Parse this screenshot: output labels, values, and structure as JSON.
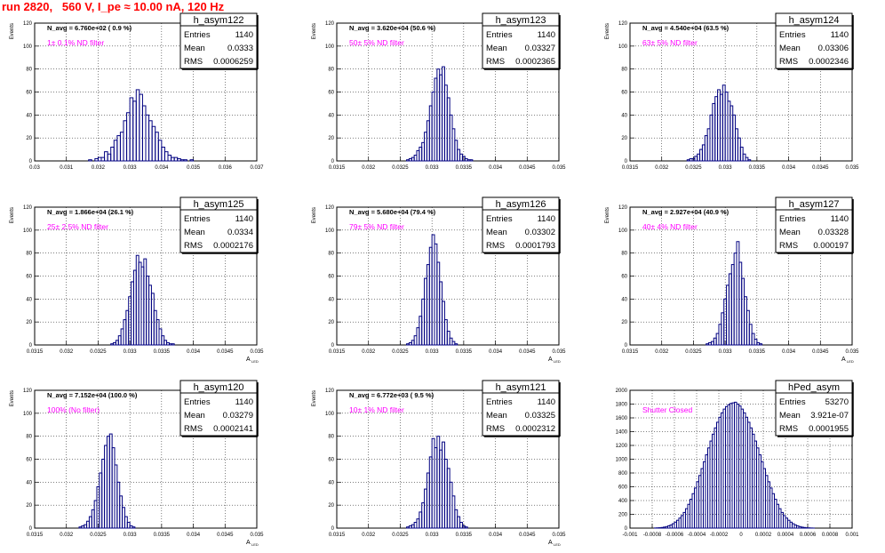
{
  "title": "run 2820,   560 V, I_pe ≈ 10.00 nA, 120 Hz",
  "colors": {
    "hist": "#000080",
    "note": "#ff00ff",
    "title": "#ff0000",
    "grid": "#c0c0c0"
  },
  "chart_data": [
    {
      "type": "bar",
      "name": "h_asym122",
      "stats": {
        "entries_label": "Entries",
        "entries": "1140",
        "mean_label": "Mean",
        "mean": "0.0333",
        "rms_label": "RMS",
        "rms": "0.0006259"
      },
      "navg_label": "N_avg = 6.760e+02 ( 0.9 %)",
      "note": "1± 0.1% ND filter",
      "ylabel": "Events",
      "xlabel": "",
      "xlim": [
        0.03,
        0.037
      ],
      "ylim": [
        0,
        120
      ],
      "xticks": [
        "0.03",
        "0.031",
        "0.032",
        "0.033",
        "0.034",
        "0.035",
        "0.036",
        "0.037"
      ],
      "yticks": [
        "0",
        "20",
        "40",
        "60",
        "80",
        "100",
        "120"
      ],
      "bin_start": 0.0317,
      "bin_width": 0.0001,
      "values": [
        1,
        0,
        2,
        3,
        3,
        8,
        6,
        12,
        18,
        22,
        25,
        35,
        42,
        55,
        52,
        62,
        58,
        48,
        40,
        35,
        30,
        25,
        18,
        12,
        8,
        5,
        3,
        3,
        2,
        1,
        1,
        0,
        1
      ]
    },
    {
      "type": "bar",
      "name": "h_asym123",
      "stats": {
        "entries_label": "Entries",
        "entries": "1140",
        "mean_label": "Mean",
        "mean": "0.03327",
        "rms_label": "RMS",
        "rms": "0.0002365"
      },
      "navg_label": "N_avg = 3.620e+04 (50.6 %)",
      "note": "50± 5% ND filter",
      "ylabel": "Events",
      "xlabel": "",
      "xlim": [
        0.0315,
        0.035
      ],
      "ylim": [
        0,
        120
      ],
      "xticks": [
        "0.0315",
        "0.032",
        "0.0325",
        "0.033",
        "0.0335",
        "0.034",
        "0.0345",
        "0.035"
      ],
      "yticks": [
        "0",
        "20",
        "40",
        "60",
        "80",
        "100",
        "120"
      ],
      "bin_start": 0.0326,
      "bin_width": 4e-05,
      "values": [
        1,
        2,
        3,
        5,
        9,
        12,
        16,
        25,
        35,
        48,
        60,
        72,
        80,
        75,
        82,
        66,
        55,
        40,
        28,
        18,
        10,
        6,
        4,
        2,
        1,
        1
      ]
    },
    {
      "type": "bar",
      "name": "h_asym124",
      "stats": {
        "entries_label": "Entries",
        "entries": "1140",
        "mean_label": "Mean",
        "mean": "0.03306",
        "rms_label": "RMS",
        "rms": "0.0002346"
      },
      "navg_label": "N_avg = 4.540e+04 (63.5 %)",
      "note": "63± 5% ND filter",
      "ylabel": "Events",
      "xlabel": "",
      "xlim": [
        0.0315,
        0.035
      ],
      "ylim": [
        0,
        120
      ],
      "xticks": [
        "0.0315",
        "0.032",
        "0.0325",
        "0.033",
        "0.0335",
        "0.034",
        "0.0345",
        "0.035"
      ],
      "yticks": [
        "0",
        "20",
        "40",
        "60",
        "80",
        "100",
        "120"
      ],
      "bin_start": 0.0324,
      "bin_width": 4e-05,
      "values": [
        1,
        2,
        2,
        4,
        6,
        10,
        14,
        22,
        28,
        40,
        50,
        56,
        62,
        58,
        66,
        60,
        52,
        48,
        40,
        28,
        20,
        12,
        6,
        3,
        1
      ]
    },
    {
      "type": "bar",
      "name": "h_asym125",
      "stats": {
        "entries_label": "Entries",
        "entries": "1140",
        "mean_label": "Mean",
        "mean": "0.0334",
        "rms_label": "RMS",
        "rms": "0.0002176"
      },
      "navg_label": "N_avg = 1.866e+04 (26.1 %)",
      "note": "25± 2.5% ND filter",
      "ylabel": "Events",
      "xlabel": "A",
      "xlabel_sub": "LED",
      "xlim": [
        0.0315,
        0.035
      ],
      "ylim": [
        0,
        120
      ],
      "xticks": [
        "0.0315",
        "0.032",
        "0.0325",
        "0.033",
        "0.0335",
        "0.034",
        "0.0345",
        "0.035"
      ],
      "yticks": [
        "0",
        "20",
        "40",
        "60",
        "80",
        "100",
        "120"
      ],
      "bin_start": 0.0327,
      "bin_width": 4e-05,
      "values": [
        1,
        2,
        4,
        8,
        14,
        22,
        30,
        42,
        55,
        65,
        78,
        72,
        68,
        75,
        60,
        52,
        45,
        30,
        22,
        14,
        8,
        4,
        2,
        1,
        1
      ]
    },
    {
      "type": "bar",
      "name": "h_asym126",
      "stats": {
        "entries_label": "Entries",
        "entries": "1140",
        "mean_label": "Mean",
        "mean": "0.03302",
        "rms_label": "RMS",
        "rms": "0.0001793"
      },
      "navg_label": "N_avg = 5.680e+04 (79.4 %)",
      "note": "79± 5% ND filter",
      "ylabel": "Events",
      "xlabel": "A",
      "xlabel_sub": "LED",
      "xlim": [
        0.0315,
        0.035
      ],
      "ylim": [
        0,
        120
      ],
      "xticks": [
        "0.0315",
        "0.032",
        "0.0325",
        "0.033",
        "0.0335",
        "0.034",
        "0.0345",
        "0.035"
      ],
      "yticks": [
        "0",
        "20",
        "40",
        "60",
        "80",
        "100",
        "120"
      ],
      "bin_start": 0.0326,
      "bin_width": 4e-05,
      "values": [
        1,
        2,
        4,
        8,
        15,
        25,
        40,
        58,
        70,
        85,
        96,
        88,
        72,
        55,
        38,
        22,
        12,
        6,
        3,
        1
      ]
    },
    {
      "type": "bar",
      "name": "h_asym127",
      "stats": {
        "entries_label": "Entries",
        "entries": "1140",
        "mean_label": "Mean",
        "mean": "0.03328",
        "rms_label": "RMS",
        "rms": "0.000197"
      },
      "navg_label": "N_avg = 2.927e+04 (40.9 %)",
      "note": "40± 4% ND filter",
      "ylabel": "Events",
      "xlabel": "A",
      "xlabel_sub": "LED",
      "xlim": [
        0.0315,
        0.035
      ],
      "ylim": [
        0,
        120
      ],
      "xticks": [
        "0.0315",
        "0.032",
        "0.0325",
        "0.033",
        "0.0335",
        "0.034",
        "0.0345",
        "0.035"
      ],
      "yticks": [
        "0",
        "20",
        "40",
        "60",
        "80",
        "100",
        "120"
      ],
      "bin_start": 0.0327,
      "bin_width": 4e-05,
      "values": [
        1,
        2,
        3,
        6,
        10,
        18,
        28,
        40,
        52,
        62,
        70,
        80,
        90,
        72,
        58,
        42,
        30,
        18,
        10,
        5,
        2,
        1
      ]
    },
    {
      "type": "bar",
      "name": "h_asym120",
      "stats": {
        "entries_label": "Entries",
        "entries": "1140",
        "mean_label": "Mean",
        "mean": "0.03279",
        "rms_label": "RMS",
        "rms": "0.0002141"
      },
      "navg_label": "N_avg = 7.152e+04 (100.0 %)",
      "note": "100% (No filter)",
      "ylabel": "Events",
      "xlabel": "A",
      "xlabel_sub": "LED",
      "xlim": [
        0.0315,
        0.035
      ],
      "ylim": [
        0,
        120
      ],
      "xticks": [
        "0.0315",
        "0.032",
        "0.0325",
        "0.033",
        "0.0335",
        "0.034",
        "0.0345",
        "0.035"
      ],
      "yticks": [
        "0",
        "20",
        "40",
        "60",
        "80",
        "100",
        "120"
      ],
      "bin_start": 0.0322,
      "bin_width": 4e-05,
      "values": [
        1,
        2,
        3,
        6,
        10,
        16,
        24,
        36,
        48,
        60,
        72,
        80,
        82,
        70,
        55,
        40,
        28,
        18,
        10,
        5,
        2,
        1
      ]
    },
    {
      "type": "bar",
      "name": "h_asym121",
      "stats": {
        "entries_label": "Entries",
        "entries": "1140",
        "mean_label": "Mean",
        "mean": "0.03325",
        "rms_label": "RMS",
        "rms": "0.0002312"
      },
      "navg_label": "N_avg = 6.772e+03 ( 9.5 %)",
      "note": "10± 1% ND filter",
      "ylabel": "Events",
      "xlabel": "A",
      "xlabel_sub": "LED",
      "xlim": [
        0.0315,
        0.035
      ],
      "ylim": [
        0,
        120
      ],
      "xticks": [
        "0.0315",
        "0.032",
        "0.0325",
        "0.033",
        "0.0335",
        "0.034",
        "0.0345",
        "0.035"
      ],
      "yticks": [
        "0",
        "20",
        "40",
        "60",
        "80",
        "100",
        "120"
      ],
      "bin_start": 0.0326,
      "bin_width": 4e-05,
      "values": [
        1,
        2,
        3,
        5,
        8,
        14,
        22,
        34,
        48,
        62,
        78,
        70,
        80,
        68,
        75,
        60,
        52,
        40,
        28,
        16,
        10,
        5,
        2,
        1
      ]
    },
    {
      "type": "bar",
      "name": "hPed_asym",
      "stats": {
        "entries_label": "Entries",
        "entries": "53270",
        "mean_label": "Mean",
        "mean": "3.921e-07",
        "rms_label": "RMS",
        "rms": "0.0001955"
      },
      "navg_label": "",
      "note": "Shutter Closed",
      "ylabel": "",
      "xlabel": "",
      "xlim": [
        -0.001,
        0.001
      ],
      "ylim": [
        0,
        2200
      ],
      "xticks": [
        "-0.001",
        "-0.0008",
        "-0.0006",
        "-0.0004",
        "-0.0002",
        "0",
        "0.0002",
        "0.0004",
        "0.0006",
        "0.0008",
        "0.001"
      ],
      "yticks": [
        "0",
        "200",
        "400",
        "600",
        "800",
        "1000",
        "1200",
        "1400",
        "1600",
        "1800",
        "2000"
      ],
      "bin_start": -0.00078,
      "bin_width": 2e-05,
      "values": [
        2,
        4,
        6,
        10,
        16,
        24,
        36,
        50,
        70,
        95,
        125,
        160,
        200,
        250,
        310,
        380,
        460,
        550,
        640,
        740,
        840,
        950,
        1060,
        1170,
        1280,
        1390,
        1500,
        1600,
        1690,
        1770,
        1840,
        1900,
        1940,
        1970,
        1990,
        2000,
        2010,
        1980,
        1950,
        1900,
        1840,
        1770,
        1690,
        1600,
        1500,
        1390,
        1280,
        1170,
        1060,
        950,
        840,
        740,
        640,
        550,
        460,
        380,
        310,
        250,
        200,
        160,
        125,
        95,
        70,
        50,
        36,
        24,
        16,
        10,
        6,
        4,
        2,
        1
      ]
    }
  ]
}
